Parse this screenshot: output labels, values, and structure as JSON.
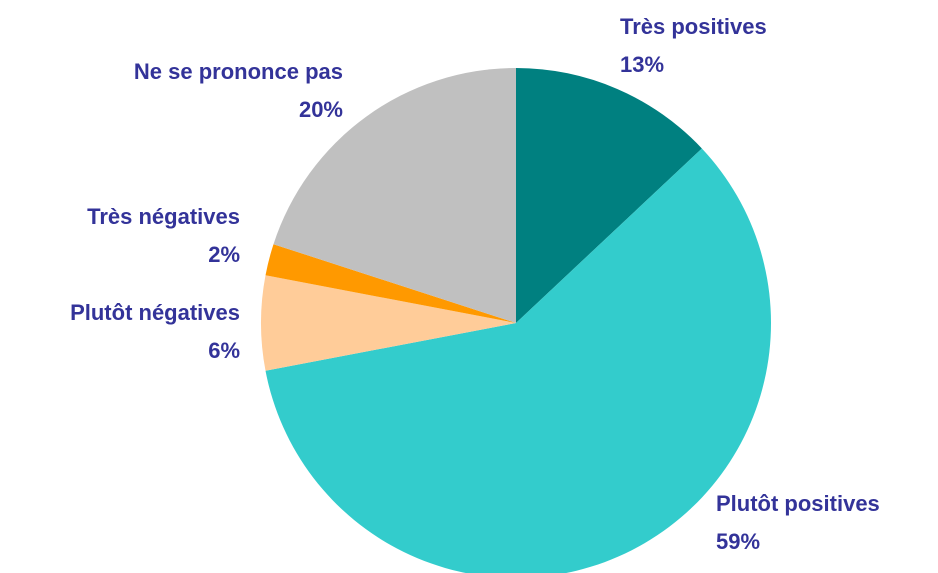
{
  "chart_data": {
    "type": "pie",
    "categories": [
      "Très positives",
      "Plutôt positives",
      "Plutôt négatives",
      "Très négatives",
      "Ne se prononce pas"
    ],
    "values": [
      13,
      59,
      6,
      2,
      20
    ],
    "value_labels": [
      "13%",
      "59%",
      "6%",
      "2%",
      "20%"
    ],
    "colors": [
      "#008080",
      "#33cccc",
      "#ffcc99",
      "#ff9900",
      "#c0c0c0"
    ]
  }
}
